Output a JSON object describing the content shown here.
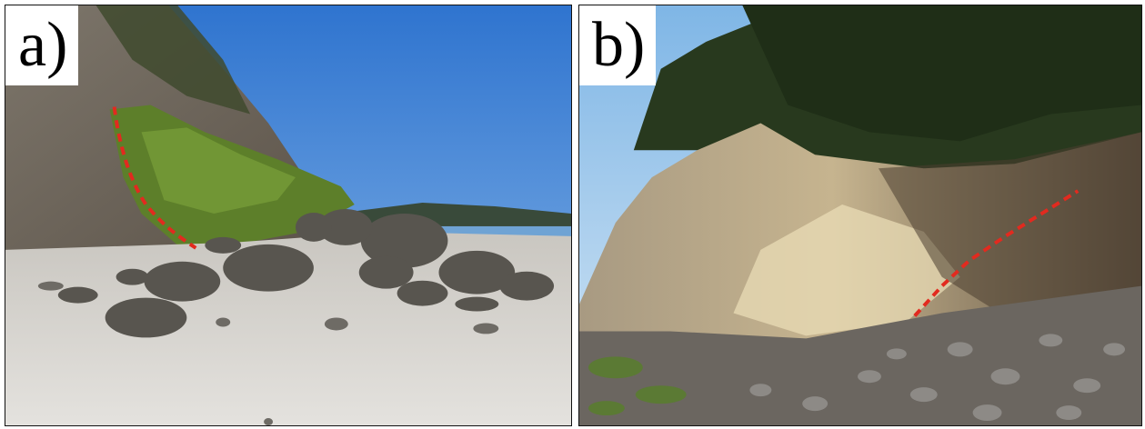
{
  "panels": [
    {
      "label": "a)"
    },
    {
      "label": "b)"
    }
  ],
  "colors": {
    "marker_line": "#e22a1f",
    "sky_a": "#3f84d8",
    "sky_b": "#8ec3ec",
    "sand": "#d9d7d2",
    "vegetation": "#5d7f2a"
  }
}
